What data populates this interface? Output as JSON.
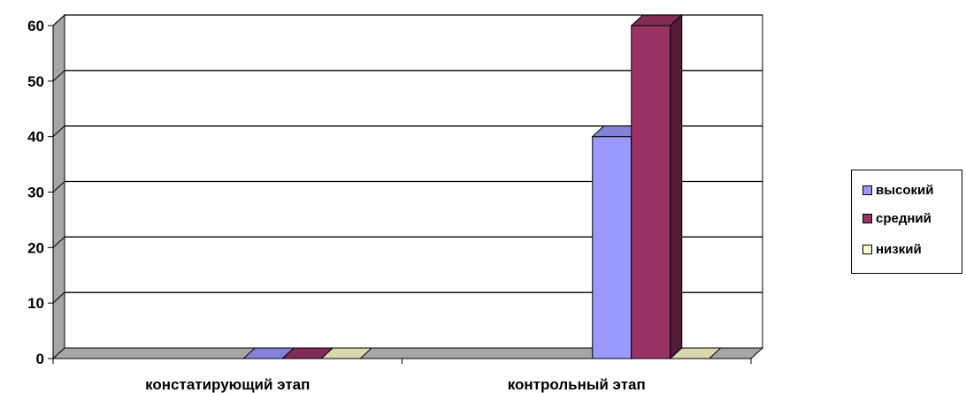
{
  "chart_data": {
    "type": "bar",
    "categories": [
      "констатирующий этап",
      "контрольный этап"
    ],
    "series": [
      {
        "name": "высокий",
        "values": [
          0,
          40
        ],
        "color": "#9999ff"
      },
      {
        "name": "средний",
        "values": [
          0,
          60
        ],
        "color": "#993366"
      },
      {
        "name": "низкий",
        "values": [
          0,
          0
        ],
        "color": "#ffffcc"
      }
    ],
    "ylim": [
      0,
      60
    ],
    "yticks": [
      "0",
      "10",
      "20",
      "30",
      "40",
      "50",
      "60"
    ],
    "grid": true,
    "legend_position": "right",
    "style": "3d-column"
  },
  "legend": {
    "items": [
      {
        "label": "высокий",
        "color": "#9999ff"
      },
      {
        "label": "средний",
        "color": "#993366"
      },
      {
        "label": "низкий",
        "color": "#ffffcc"
      }
    ]
  }
}
